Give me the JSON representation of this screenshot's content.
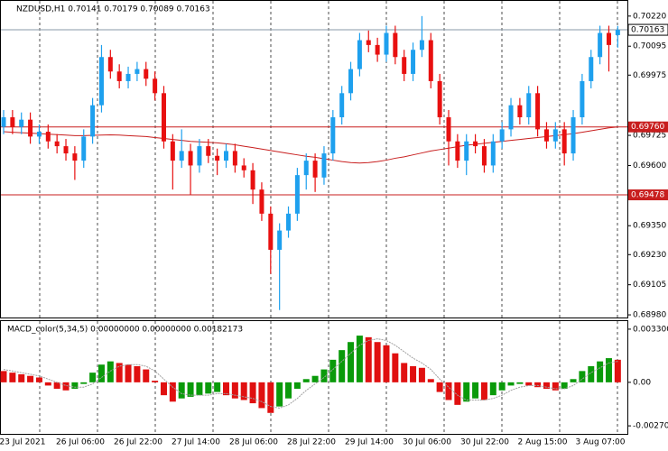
{
  "chart_data": {
    "type": "candlestick",
    "title": "NZDUSD,H1  0.70141 0.70179 0.70089 0.70163",
    "bull_color": "#1ea0ee",
    "bear_color": "#e81010",
    "ma_color": "#c81e1e",
    "ylim": [
      0.68969,
      0.70283
    ],
    "yticks": [
      {
        "value": 0.7022,
        "label": "0.70220"
      },
      0.70095,
      0.69975,
      0.69725,
      {
        "value": 0.696,
        "label": "0.69600"
      },
      {
        "value": 0.6935,
        "label": "0.69350"
      },
      {
        "value": 0.6923,
        "label": "0.69230"
      },
      0.69105,
      {
        "value": 0.6898,
        "label": "0.68980"
      }
    ],
    "current_price": 0.70163,
    "levels": [
      {
        "value": 0.6976,
        "label": "0.69760"
      },
      0.69478
    ],
    "xlabels": [
      "23 Jul 2021",
      "26 Jul 06:00",
      "26 Jul 22:00",
      "27 Jul 14:00",
      "28 Jul 06:00",
      "28 Jul 22:00",
      "29 Jul 14:00",
      "30 Jul 06:00",
      "30 Jul 22:00",
      "2 Aug 15:00",
      "3 Aug 07:00"
    ],
    "candles": [
      [
        0.6976,
        0.6983,
        0.6973,
        0.698
      ],
      [
        0.698,
        0.6983,
        0.6973,
        0.6976
      ],
      [
        0.6976,
        0.6982,
        0.6973,
        0.6979
      ],
      [
        0.6979,
        0.6982,
        0.6969,
        0.6972
      ],
      [
        0.6972,
        0.6977,
        0.6969,
        0.6974
      ],
      [
        0.6974,
        0.6977,
        0.6967,
        0.697
      ],
      [
        0.697,
        0.6973,
        0.6965,
        0.6968
      ],
      [
        0.6968,
        0.6971,
        0.6962,
        0.6965
      ],
      [
        0.6965,
        0.6968,
        0.6954,
        0.6962
      ],
      [
        0.6962,
        0.6975,
        0.6959,
        0.6972
      ],
      [
        0.6972,
        0.6988,
        0.6969,
        0.6985
      ],
      [
        0.6985,
        0.701,
        0.6982,
        0.7005
      ],
      [
        0.7005,
        0.7008,
        0.6996,
        0.6999
      ],
      [
        0.6999,
        0.7002,
        0.6992,
        0.6995
      ],
      [
        0.6995,
        0.7001,
        0.6992,
        0.6998
      ],
      [
        0.6998,
        0.7003,
        0.6995,
        0.7
      ],
      [
        0.7,
        0.7003,
        0.6993,
        0.6996
      ],
      [
        0.6996,
        0.6999,
        0.6987,
        0.699
      ],
      [
        0.699,
        0.6993,
        0.6967,
        0.697
      ],
      [
        0.697,
        0.6973,
        0.695,
        0.6962
      ],
      [
        0.6962,
        0.6975,
        0.6959,
        0.6966
      ],
      [
        0.6966,
        0.6969,
        0.6948,
        0.696
      ],
      [
        0.696,
        0.6971,
        0.6957,
        0.6968
      ],
      [
        0.6968,
        0.6971,
        0.6961,
        0.6964
      ],
      [
        0.6964,
        0.6967,
        0.6956,
        0.6962
      ],
      [
        0.6962,
        0.6969,
        0.6959,
        0.6966
      ],
      [
        0.6966,
        0.6969,
        0.6957,
        0.696
      ],
      [
        0.696,
        0.6963,
        0.6955,
        0.6958
      ],
      [
        0.6958,
        0.6961,
        0.6944,
        0.695
      ],
      [
        0.695,
        0.6953,
        0.6937,
        0.694
      ],
      [
        0.694,
        0.6943,
        0.6915,
        0.6925
      ],
      [
        0.6925,
        0.6936,
        0.69,
        0.6933
      ],
      [
        0.6933,
        0.6943,
        0.693,
        0.694
      ],
      [
        0.694,
        0.6959,
        0.6937,
        0.6956
      ],
      [
        0.6956,
        0.6965,
        0.695,
        0.6962
      ],
      [
        0.6962,
        0.6965,
        0.6949,
        0.6955
      ],
      [
        0.6955,
        0.6968,
        0.6952,
        0.6965
      ],
      [
        0.6965,
        0.6983,
        0.6962,
        0.698
      ],
      [
        0.698,
        0.6993,
        0.6977,
        0.699
      ],
      [
        0.699,
        0.7003,
        0.6987,
        0.7
      ],
      [
        0.7,
        0.7015,
        0.6997,
        0.7012
      ],
      [
        0.7012,
        0.7016,
        0.7007,
        0.701
      ],
      [
        0.701,
        0.7013,
        0.7003,
        0.7006
      ],
      [
        0.7006,
        0.7018,
        0.7003,
        0.7015
      ],
      [
        0.7015,
        0.7018,
        0.7002,
        0.7005
      ],
      [
        0.7005,
        0.7008,
        0.6995,
        0.6998
      ],
      [
        0.6998,
        0.7011,
        0.6995,
        0.7008
      ],
      [
        0.7008,
        0.7022,
        0.7005,
        0.7012
      ],
      [
        0.7012,
        0.7015,
        0.6992,
        0.6995
      ],
      [
        0.6995,
        0.6998,
        0.6977,
        0.698
      ],
      [
        0.698,
        0.6983,
        0.696,
        0.697
      ],
      [
        0.697,
        0.6973,
        0.6959,
        0.6962
      ],
      [
        0.6962,
        0.6973,
        0.6956,
        0.697
      ],
      [
        0.697,
        0.6973,
        0.6965,
        0.6968
      ],
      [
        0.6968,
        0.6971,
        0.6957,
        0.696
      ],
      [
        0.696,
        0.6973,
        0.6957,
        0.697
      ],
      [
        0.697,
        0.6978,
        0.6967,
        0.6975
      ],
      [
        0.6975,
        0.6988,
        0.6972,
        0.6985
      ],
      [
        0.6985,
        0.6988,
        0.6977,
        0.698
      ],
      [
        0.698,
        0.6993,
        0.6977,
        0.699
      ],
      [
        0.699,
        0.6993,
        0.6972,
        0.6975
      ],
      [
        0.6975,
        0.6978,
        0.6967,
        0.697
      ],
      [
        0.697,
        0.6978,
        0.6967,
        0.6975
      ],
      [
        0.6975,
        0.6978,
        0.696,
        0.6965
      ],
      [
        0.6965,
        0.6983,
        0.6962,
        0.698
      ],
      [
        0.698,
        0.6998,
        0.6977,
        0.6995
      ],
      [
        0.6995,
        0.7008,
        0.6992,
        0.7005
      ],
      [
        0.7005,
        0.7018,
        0.7002,
        0.7015
      ],
      [
        0.7015,
        0.7018,
        0.6999,
        0.701
      ],
      [
        0.70141,
        0.70179,
        0.70089,
        0.70163
      ]
    ],
    "ma": [
      0.6974,
      0.69738,
      0.69736,
      0.69734,
      0.69732,
      0.6973,
      0.69728,
      0.69726,
      0.69724,
      0.69724,
      0.69725,
      0.69726,
      0.69727,
      0.69726,
      0.69724,
      0.69722,
      0.6972,
      0.69716,
      0.69712,
      0.69708,
      0.69704,
      0.697,
      0.69698,
      0.69696,
      0.69694,
      0.6969,
      0.69686,
      0.6968,
      0.69674,
      0.69668,
      0.69662,
      0.69656,
      0.6965,
      0.69644,
      0.69638,
      0.69634,
      0.69628,
      0.69622,
      0.69616,
      0.69612,
      0.6961,
      0.69612,
      0.69616,
      0.69622,
      0.6963,
      0.69636,
      0.69644,
      0.69652,
      0.6966,
      0.69666,
      0.69672,
      0.69678,
      0.69684,
      0.69688,
      0.69692,
      0.69696,
      0.697,
      0.69704,
      0.69708,
      0.69712,
      0.69716,
      0.6972,
      0.69724,
      0.69728,
      0.69732,
      0.69738,
      0.69744,
      0.6975,
      0.69756,
      0.6976
    ],
    "macd_title": "MACD_color(5,34,5) 0.00000000 0.00000000 0.00182173",
    "up_color": "#0a9a0a",
    "down_color": "#e01010",
    "signal_color": "#a0a0a0",
    "y2lim": [
      -0.0032,
      0.0038
    ],
    "y2ticks": [
      0.0033004,
      {
        "value": 0,
        "label": "0.00"
      },
      -0.0027026
    ],
    "macd": [
      0.0007,
      0.0006,
      0.0005,
      0.0004,
      0.0003,
      -0.0002,
      -0.0004,
      -0.0005,
      -0.0004,
      -0.0001,
      0.0006,
      0.0011,
      0.0013,
      0.0012,
      0.0011,
      0.001,
      0.0008,
      0.0001,
      -0.0008,
      -0.0012,
      -0.001,
      -0.0009,
      -0.0008,
      -0.0007,
      -0.0006,
      -0.0008,
      -0.001,
      -0.0011,
      -0.0013,
      -0.0016,
      -0.0019,
      -0.0015,
      -0.001,
      -0.0004,
      0.0002,
      0.0004,
      0.0008,
      0.0014,
      0.002,
      0.0025,
      0.0029,
      0.0028,
      0.0025,
      0.0023,
      0.0018,
      0.0012,
      0.001,
      0.0009,
      0.0002,
      -0.0006,
      -0.0011,
      -0.0014,
      -0.0012,
      -0.001,
      -0.0011,
      -0.0008,
      -0.0005,
      -0.0002,
      -0.0001,
      -0.0002,
      -0.0003,
      -0.0004,
      -0.0005,
      -0.0004,
      0.0002,
      0.0007,
      0.001,
      0.0013,
      0.0015,
      0.0014
    ],
    "signal": [
      0.0008,
      0.0007,
      0.0006,
      0.0005,
      0.0004,
      0.0002,
      0.0,
      -0.0002,
      -0.0003,
      -0.0003,
      -0.0001,
      0.0003,
      0.0007,
      0.001,
      0.0011,
      0.0011,
      0.001,
      0.0007,
      0.0002,
      -0.0003,
      -0.0007,
      -0.0008,
      -0.0008,
      -0.0008,
      -0.0007,
      -0.0007,
      -0.0008,
      -0.0009,
      -0.001,
      -0.0012,
      -0.0015,
      -0.0016,
      -0.0014,
      -0.001,
      -0.0005,
      -0.0001,
      0.0003,
      0.0008,
      0.0013,
      0.0018,
      0.0023,
      0.0026,
      0.0027,
      0.0026,
      0.0023,
      0.0019,
      0.0015,
      0.0012,
      0.0008,
      0.0002,
      -0.0003,
      -0.0008,
      -0.0011,
      -0.0011,
      -0.0011,
      -0.001,
      -0.0008,
      -0.0005,
      -0.0003,
      -0.0002,
      -0.0002,
      -0.0003,
      -0.0004,
      -0.0004,
      -0.0002,
      0.0002,
      0.0006,
      0.0009,
      0.0012,
      0.0013
    ]
  }
}
